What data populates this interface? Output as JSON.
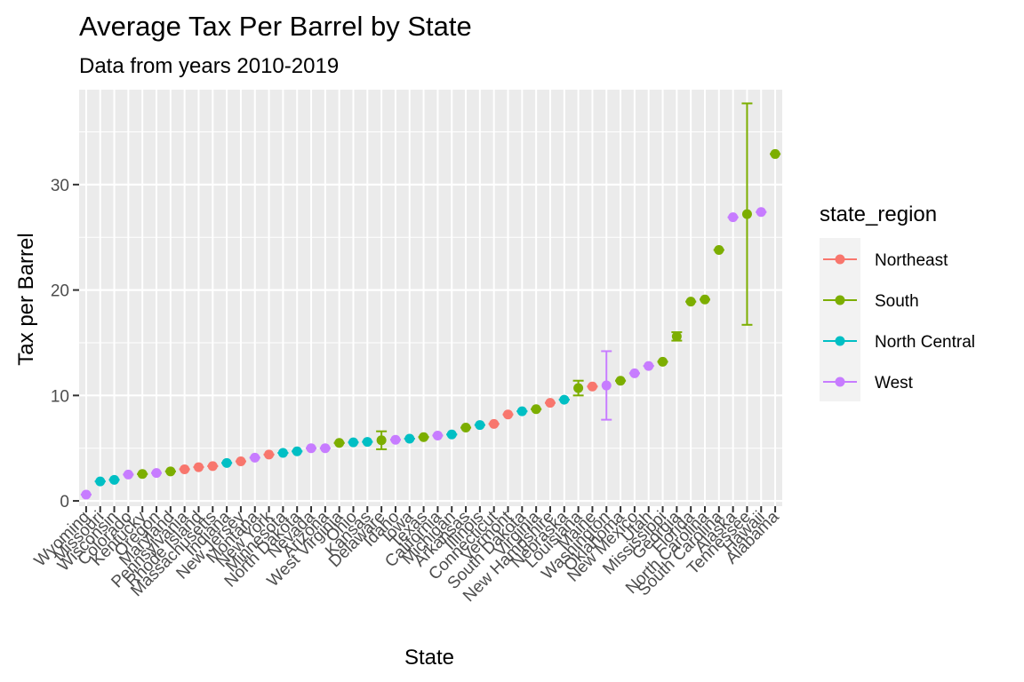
{
  "chart_data": {
    "type": "scatter",
    "title": "Average Tax Per Barrel by State",
    "subtitle": "Data from years 2010-2019",
    "xlabel": "State",
    "ylabel": "Tax per Barrel",
    "ylim": [
      -0.5,
      39
    ],
    "yticks": [
      0,
      10,
      20,
      30
    ],
    "grid": true,
    "error_bars": true,
    "legend": {
      "title": "state_region",
      "position": "right",
      "entries": [
        {
          "name": "Northeast",
          "color": "#F8766D"
        },
        {
          "name": "South",
          "color": "#7CAE00"
        },
        {
          "name": "North Central",
          "color": "#00BFC4"
        },
        {
          "name": "West",
          "color": "#C77CFF"
        }
      ]
    },
    "points": [
      {
        "state": "Wyoming",
        "region": "West",
        "value": 0.6,
        "lo": 0.6,
        "hi": 0.6
      },
      {
        "state": "Missouri",
        "region": "North Central",
        "value": 1.85,
        "lo": 1.85,
        "hi": 1.85
      },
      {
        "state": "Wisconsin",
        "region": "North Central",
        "value": 2.0,
        "lo": 2.0,
        "hi": 2.0
      },
      {
        "state": "Colorado",
        "region": "West",
        "value": 2.5,
        "lo": 2.5,
        "hi": 2.5
      },
      {
        "state": "Kentucky",
        "region": "South",
        "value": 2.55,
        "lo": 2.55,
        "hi": 2.55
      },
      {
        "state": "Oregon",
        "region": "West",
        "value": 2.65,
        "lo": 2.65,
        "hi": 2.65
      },
      {
        "state": "Maryland",
        "region": "South",
        "value": 2.8,
        "lo": 2.8,
        "hi": 2.8
      },
      {
        "state": "Pennsylvania",
        "region": "Northeast",
        "value": 3.0,
        "lo": 3.0,
        "hi": 3.0
      },
      {
        "state": "Rhode Island",
        "region": "Northeast",
        "value": 3.2,
        "lo": 3.2,
        "hi": 3.2
      },
      {
        "state": "Massachusetts",
        "region": "Northeast",
        "value": 3.3,
        "lo": 3.3,
        "hi": 3.3
      },
      {
        "state": "Indiana",
        "region": "North Central",
        "value": 3.6,
        "lo": 3.6,
        "hi": 3.6
      },
      {
        "state": "New Jersey",
        "region": "Northeast",
        "value": 3.75,
        "lo": 3.75,
        "hi": 3.75
      },
      {
        "state": "Montana",
        "region": "West",
        "value": 4.1,
        "lo": 4.1,
        "hi": 4.1
      },
      {
        "state": "New York",
        "region": "Northeast",
        "value": 4.4,
        "lo": 4.4,
        "hi": 4.4
      },
      {
        "state": "Minnesota",
        "region": "North Central",
        "value": 4.55,
        "lo": 4.55,
        "hi": 4.55
      },
      {
        "state": "North Dakota",
        "region": "North Central",
        "value": 4.7,
        "lo": 4.7,
        "hi": 4.7
      },
      {
        "state": "Nevada",
        "region": "West",
        "value": 5.0,
        "lo": 5.0,
        "hi": 5.0
      },
      {
        "state": "Arizona",
        "region": "West",
        "value": 5.0,
        "lo": 5.0,
        "hi": 5.0
      },
      {
        "state": "West Virginia",
        "region": "South",
        "value": 5.5,
        "lo": 5.5,
        "hi": 5.5
      },
      {
        "state": "Ohio",
        "region": "North Central",
        "value": 5.55,
        "lo": 5.55,
        "hi": 5.55
      },
      {
        "state": "Kansas",
        "region": "North Central",
        "value": 5.6,
        "lo": 5.6,
        "hi": 5.6
      },
      {
        "state": "Delaware",
        "region": "South",
        "value": 5.75,
        "lo": 4.9,
        "hi": 6.6
      },
      {
        "state": "Idaho",
        "region": "West",
        "value": 5.8,
        "lo": 5.8,
        "hi": 5.8
      },
      {
        "state": "Iowa",
        "region": "North Central",
        "value": 5.9,
        "lo": 5.9,
        "hi": 5.9
      },
      {
        "state": "Texas",
        "region": "South",
        "value": 6.05,
        "lo": 6.05,
        "hi": 6.05
      },
      {
        "state": "California",
        "region": "West",
        "value": 6.2,
        "lo": 6.2,
        "hi": 6.2
      },
      {
        "state": "Michigan",
        "region": "North Central",
        "value": 6.3,
        "lo": 6.3,
        "hi": 6.3
      },
      {
        "state": "Arkansas",
        "region": "South",
        "value": 6.95,
        "lo": 6.95,
        "hi": 6.95
      },
      {
        "state": "Illinois",
        "region": "North Central",
        "value": 7.2,
        "lo": 7.2,
        "hi": 7.2
      },
      {
        "state": "Connecticut",
        "region": "Northeast",
        "value": 7.3,
        "lo": 7.3,
        "hi": 7.3
      },
      {
        "state": "Vermont",
        "region": "Northeast",
        "value": 8.2,
        "lo": 8.2,
        "hi": 8.2
      },
      {
        "state": "South Dakota",
        "region": "North Central",
        "value": 8.5,
        "lo": 8.5,
        "hi": 8.5
      },
      {
        "state": "Virginia",
        "region": "South",
        "value": 8.7,
        "lo": 8.7,
        "hi": 8.7
      },
      {
        "state": "New Hampshire",
        "region": "Northeast",
        "value": 9.3,
        "lo": 9.3,
        "hi": 9.3
      },
      {
        "state": "Nebraska",
        "region": "North Central",
        "value": 9.6,
        "lo": 9.6,
        "hi": 9.6
      },
      {
        "state": "Louisiana",
        "region": "South",
        "value": 10.7,
        "lo": 10.0,
        "hi": 11.4
      },
      {
        "state": "Maine",
        "region": "Northeast",
        "value": 10.85,
        "lo": 10.85,
        "hi": 10.85
      },
      {
        "state": "Washington",
        "region": "West",
        "value": 10.95,
        "lo": 7.7,
        "hi": 14.2
      },
      {
        "state": "Oklahoma",
        "region": "South",
        "value": 11.4,
        "lo": 11.4,
        "hi": 11.4
      },
      {
        "state": "New Mexico",
        "region": "West",
        "value": 12.1,
        "lo": 12.1,
        "hi": 12.1
      },
      {
        "state": "Utah",
        "region": "West",
        "value": 12.8,
        "lo": 12.8,
        "hi": 12.8
      },
      {
        "state": "Mississippi",
        "region": "South",
        "value": 13.2,
        "lo": 13.2,
        "hi": 13.2
      },
      {
        "state": "Georgia",
        "region": "South",
        "value": 15.6,
        "lo": 15.2,
        "hi": 16.0
      },
      {
        "state": "Florida",
        "region": "South",
        "value": 18.9,
        "lo": 18.9,
        "hi": 18.9
      },
      {
        "state": "North Carolina",
        "region": "South",
        "value": 19.1,
        "lo": 19.1,
        "hi": 19.1
      },
      {
        "state": "South Carolina",
        "region": "South",
        "value": 23.8,
        "lo": 23.8,
        "hi": 23.8
      },
      {
        "state": "Alaska",
        "region": "West",
        "value": 26.9,
        "lo": 26.9,
        "hi": 26.9
      },
      {
        "state": "Tennessee",
        "region": "South",
        "value": 27.2,
        "lo": 16.7,
        "hi": 37.7
      },
      {
        "state": "Hawaii",
        "region": "West",
        "value": 27.4,
        "lo": 27.4,
        "hi": 27.4
      },
      {
        "state": "Alabama",
        "region": "South",
        "value": 32.9,
        "lo": 32.9,
        "hi": 32.9
      }
    ]
  }
}
